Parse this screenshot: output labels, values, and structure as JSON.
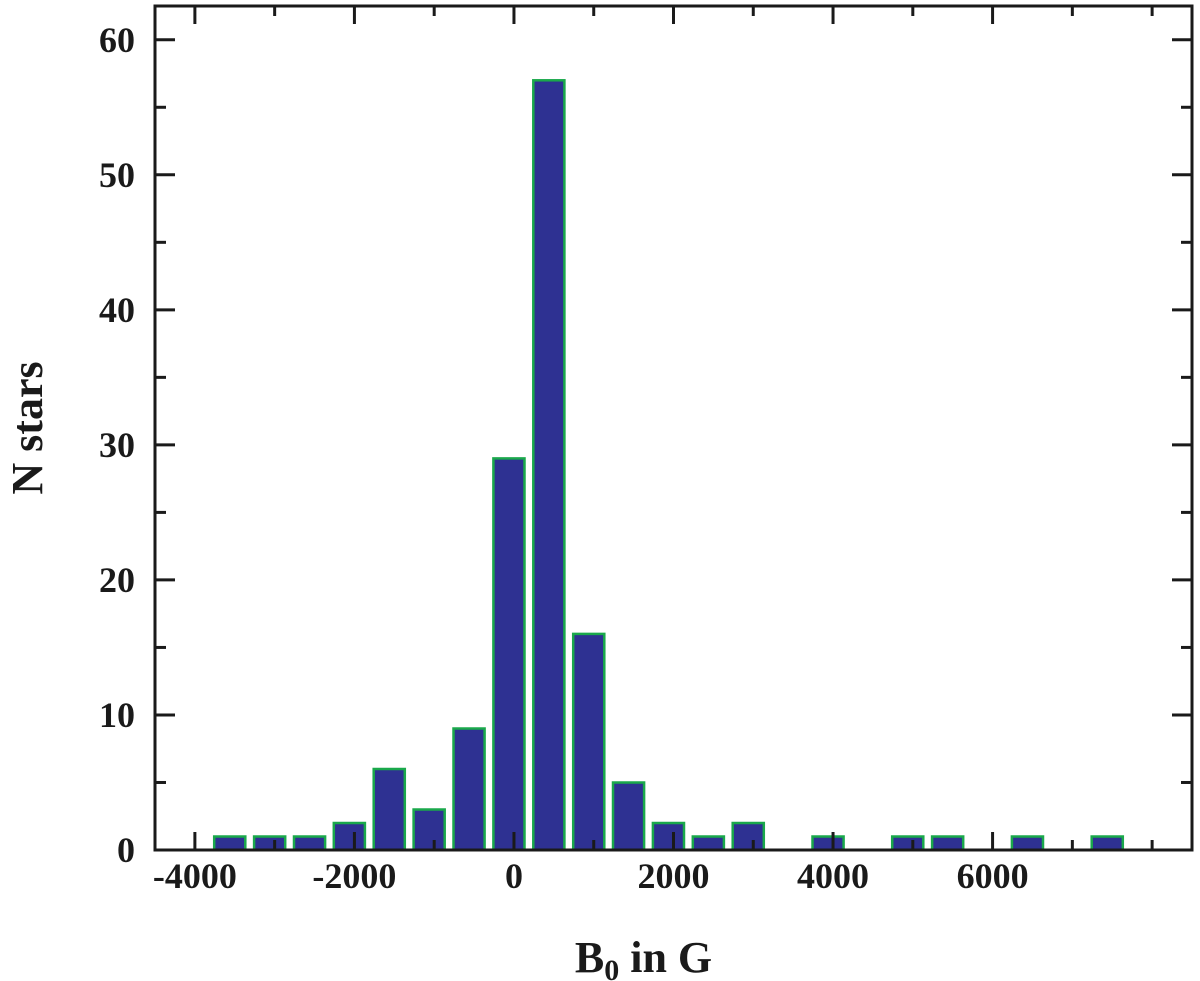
{
  "chart_data": {
    "type": "bar",
    "title": "",
    "xlabel": "B",
    "xlabel_subscript": "0",
    "xlabel_suffix": " in G",
    "ylabel": "N stars",
    "xlim": [
      -4500,
      8500
    ],
    "ylim": [
      0,
      62.5
    ],
    "bin_width": 500,
    "xticks": [
      -4000,
      -2000,
      0,
      2000,
      4000,
      6000
    ],
    "xtick_labels": [
      "-4000",
      "-2000",
      "0",
      "2000",
      "4000",
      "6000"
    ],
    "yticks": [
      0,
      10,
      20,
      30,
      40,
      50,
      60
    ],
    "ytick_labels": [
      "0",
      "10",
      "20",
      "30",
      "40",
      "50",
      "60"
    ],
    "grid": false,
    "bars": [
      {
        "x": -3563,
        "value": 1
      },
      {
        "x": -3063,
        "value": 1
      },
      {
        "x": -2563,
        "value": 1
      },
      {
        "x": -2063,
        "value": 2
      },
      {
        "x": -1563,
        "value": 6
      },
      {
        "x": -1063,
        "value": 3
      },
      {
        "x": -563,
        "value": 9
      },
      {
        "x": -63,
        "value": 29
      },
      {
        "x": 437,
        "value": 57
      },
      {
        "x": 937,
        "value": 16
      },
      {
        "x": 1437,
        "value": 5
      },
      {
        "x": 1937,
        "value": 2
      },
      {
        "x": 2437,
        "value": 1
      },
      {
        "x": 2937,
        "value": 2
      },
      {
        "x": 3937,
        "value": 1
      },
      {
        "x": 4937,
        "value": 1
      },
      {
        "x": 5437,
        "value": 1
      },
      {
        "x": 6437,
        "value": 1
      },
      {
        "x": 7437,
        "value": 1
      }
    ],
    "colors": {
      "bar_fill": "#2e3192",
      "bar_edge": "#1aa84b",
      "axis": "#1a1a1a"
    }
  }
}
